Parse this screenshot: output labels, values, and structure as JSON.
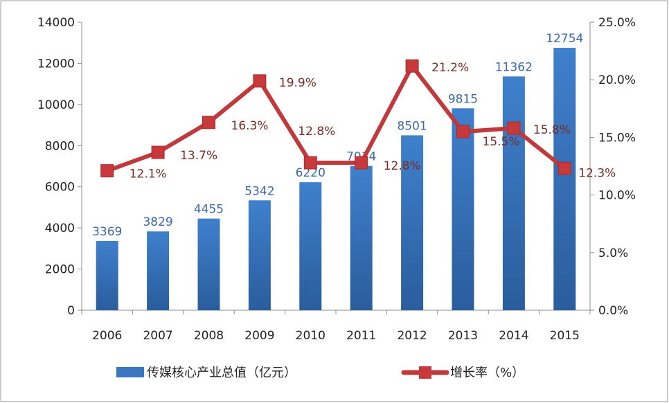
{
  "chart_data": {
    "type": "bar+line",
    "categories": [
      "2006",
      "2007",
      "2008",
      "2009",
      "2010",
      "2011",
      "2012",
      "2013",
      "2014",
      "2015"
    ],
    "series": [
      {
        "name": "传媒核心产业总值（亿元）",
        "type": "bar",
        "axis": "left",
        "values": [
          3369,
          3829,
          4455,
          5342,
          6220,
          7014,
          8501,
          9815,
          11362,
          12754
        ],
        "labels": [
          "3369",
          "3829",
          "4455",
          "5342",
          "6220",
          "7014",
          "8501",
          "9815",
          "11362",
          "12754"
        ],
        "color": "#3a77c0"
      },
      {
        "name": "增长率（%）",
        "type": "line",
        "axis": "right",
        "values": [
          12.1,
          13.7,
          16.3,
          19.9,
          12.8,
          12.8,
          21.2,
          15.5,
          15.8,
          12.3
        ],
        "labels": [
          "12.1%",
          "13.7%",
          "16.3%",
          "19.9%",
          "12.8%",
          "12.8%",
          "21.2%",
          "15.5%",
          "15.8%",
          "12.3%"
        ],
        "color": "#c0393b"
      }
    ],
    "ylim": [
      0,
      14000
    ],
    "y2lim": [
      0,
      25
    ],
    "yticks": [
      "0",
      "2000",
      "4000",
      "6000",
      "8000",
      "10000",
      "12000",
      "14000"
    ],
    "y2ticks": [
      "0.0%",
      "5.0%",
      "10.0%",
      "15.0%",
      "20.0%",
      "25.0%"
    ],
    "grid": false,
    "legend": "bottom"
  }
}
